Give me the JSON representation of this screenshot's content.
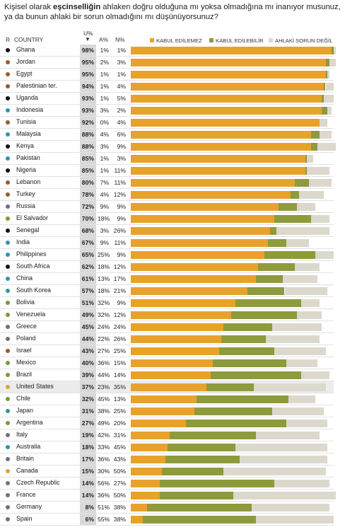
{
  "title": {
    "line1_pre": "Kişisel olarak ",
    "line1_bold": "eşcinselliğin",
    "line1_post": " ahlaken doğru olduğuna mı yoksa olmadığına mı inanıyor musunuz,",
    "line2": "ya da bunun ahlaki bir sorun olmadığını mı düşünüyorsunuz?"
  },
  "headers": {
    "region": "R",
    "country": "COUNTRY",
    "u_pct": "U%",
    "sort_arrow": "▼",
    "a_pct": "A%",
    "n_pct": "N%"
  },
  "colors": {
    "U": "#e8a22a",
    "A": "#8e9a3c",
    "N": "#dcd8cc",
    "u_cell": "#d9d9d9",
    "highlight_row": "#ececec"
  },
  "region_colors": {
    "africa": "#111111",
    "middle_east": "#9a5a2a",
    "asia": "#2f95aa",
    "europe": "#6f6f7f",
    "latin_america": "#7a9a35",
    "north_america": "#d8a52a",
    "latin_america_red": "#b94a2e"
  },
  "chart_data": {
    "type": "bar",
    "stacked": true,
    "orientation": "horizontal",
    "legend": [
      "KABUL EDİLEMEZ",
      "KABUL EDİLEBİLİR",
      "AHLAKİ SORUN DEĞİL"
    ],
    "legend_position": "top",
    "rows": [
      {
        "country": "Ghana",
        "region": "africa",
        "U": 98,
        "A": 1,
        "N": 1
      },
      {
        "country": "Jordan",
        "region": "middle_east",
        "U": 95,
        "A": 2,
        "N": 3
      },
      {
        "country": "Egypt",
        "region": "middle_east",
        "U": 95,
        "A": 1,
        "N": 1
      },
      {
        "country": "Palestinian ter.",
        "region": "middle_east",
        "U": 94,
        "A": 1,
        "N": 4
      },
      {
        "country": "Uganda",
        "region": "africa",
        "U": 93,
        "A": 1,
        "N": 5
      },
      {
        "country": "Indonesia",
        "region": "asia",
        "U": 93,
        "A": 3,
        "N": 2
      },
      {
        "country": "Tunisia",
        "region": "middle_east",
        "U": 92,
        "A": 0,
        "N": 4
      },
      {
        "country": "Malaysia",
        "region": "asia",
        "U": 88,
        "A": 4,
        "N": 6
      },
      {
        "country": "Kenya",
        "region": "africa",
        "U": 88,
        "A": 3,
        "N": 9
      },
      {
        "country": "Pakistan",
        "region": "asia",
        "U": 85,
        "A": 1,
        "N": 3
      },
      {
        "country": "Nigeria",
        "region": "africa",
        "U": 85,
        "A": 1,
        "N": 11
      },
      {
        "country": "Lebanon",
        "region": "middle_east",
        "U": 80,
        "A": 7,
        "N": 11
      },
      {
        "country": "Turkey",
        "region": "middle_east",
        "U": 78,
        "A": 4,
        "N": 12
      },
      {
        "country": "Russia",
        "region": "europe",
        "U": 72,
        "A": 9,
        "N": 9
      },
      {
        "country": "El Salvador",
        "region": "latin_america",
        "U": 70,
        "A": 18,
        "N": 9
      },
      {
        "country": "Senegal",
        "region": "africa",
        "U": 68,
        "A": 3,
        "N": 26
      },
      {
        "country": "India",
        "region": "asia",
        "U": 67,
        "A": 9,
        "N": 11
      },
      {
        "country": "Philippines",
        "region": "asia",
        "U": 65,
        "A": 25,
        "N": 9
      },
      {
        "country": "South Africa",
        "region": "africa",
        "U": 62,
        "A": 18,
        "N": 12
      },
      {
        "country": "China",
        "region": "asia",
        "U": 61,
        "A": 13,
        "N": 17
      },
      {
        "country": "South Korea",
        "region": "asia",
        "U": 57,
        "A": 18,
        "N": 21
      },
      {
        "country": "Bolivia",
        "region": "latin_america",
        "U": 51,
        "A": 32,
        "N": 9
      },
      {
        "country": "Venezuela",
        "region": "latin_america",
        "U": 49,
        "A": 32,
        "N": 12
      },
      {
        "country": "Greece",
        "region": "europe",
        "U": 45,
        "A": 24,
        "N": 24
      },
      {
        "country": "Poland",
        "region": "europe",
        "U": 44,
        "A": 22,
        "N": 26
      },
      {
        "country": "Israel",
        "region": "middle_east",
        "U": 43,
        "A": 27,
        "N": 25
      },
      {
        "country": "Mexico",
        "region": "latin_america",
        "U": 40,
        "A": 36,
        "N": 15
      },
      {
        "country": "Brazil",
        "region": "latin_america",
        "U": 39,
        "A": 44,
        "N": 14
      },
      {
        "country": "United States",
        "region": "north_america",
        "U": 37,
        "A": 23,
        "N": 35,
        "highlight": true
      },
      {
        "country": "Chile",
        "region": "latin_america",
        "U": 32,
        "A": 45,
        "N": 13
      },
      {
        "country": "Japan",
        "region": "asia",
        "U": 31,
        "A": 38,
        "N": 25
      },
      {
        "country": "Argentina",
        "region": "latin_america",
        "U": 27,
        "A": 49,
        "N": 20
      },
      {
        "country": "Italy",
        "region": "europe",
        "U": 19,
        "A": 42,
        "N": 31
      },
      {
        "country": "Australia",
        "region": "asia",
        "U": 18,
        "A": 33,
        "N": 45
      },
      {
        "country": "Britain",
        "region": "europe",
        "U": 17,
        "A": 36,
        "N": 43
      },
      {
        "country": "Canada",
        "region": "north_america",
        "U": 15,
        "A": 30,
        "N": 50
      },
      {
        "country": "Czech Republic",
        "region": "europe",
        "U": 14,
        "A": 56,
        "N": 27
      },
      {
        "country": "France",
        "region": "europe",
        "U": 14,
        "A": 36,
        "N": 50
      },
      {
        "country": "Germany",
        "region": "europe",
        "U": 8,
        "A": 51,
        "N": 38
      },
      {
        "country": "Spain",
        "region": "europe",
        "U": 6,
        "A": 55,
        "N": 38
      }
    ]
  }
}
